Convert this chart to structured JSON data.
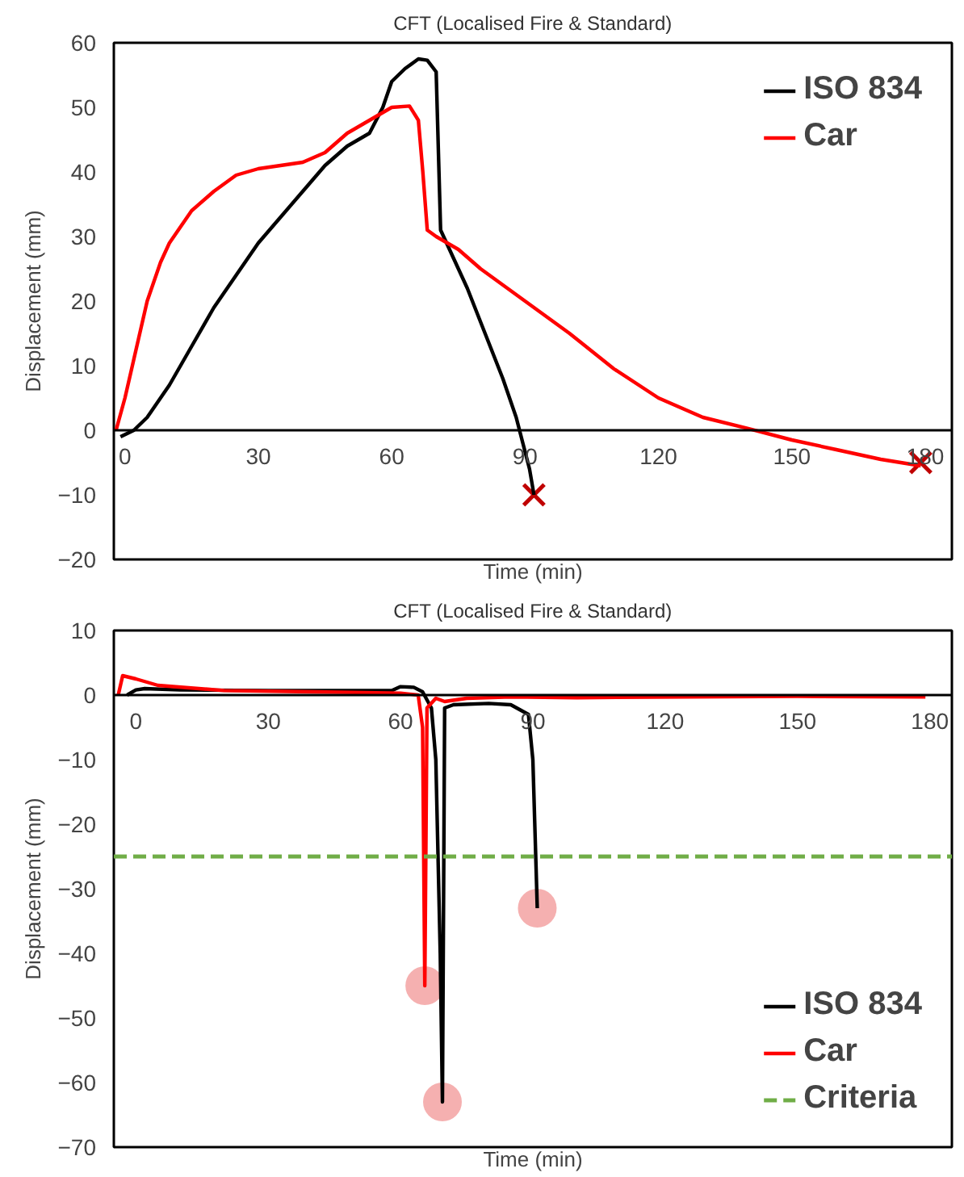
{
  "chart_data": [
    {
      "type": "line",
      "title": "CFT (Localised Fire & Standard)",
      "xlabel": "Time (min)",
      "ylabel": "Displacement (mm)",
      "xlim": [
        -2.5,
        186
      ],
      "ylim": [
        -20,
        60
      ],
      "xticks": [
        0,
        30,
        60,
        90,
        120,
        150,
        180
      ],
      "yticks": [
        -20,
        -10,
        0,
        10,
        20,
        30,
        40,
        50,
        60
      ],
      "grid": false,
      "legend": "top right",
      "series": [
        {
          "name": "ISO 834",
          "color": "#000000",
          "x": [
            -1,
            2,
            5,
            10,
            15,
            20,
            25,
            30,
            35,
            40,
            45,
            50,
            55,
            58,
            60,
            63,
            66,
            68,
            70,
            71,
            73,
            77,
            81,
            85,
            88,
            89.5,
            91,
            92
          ],
          "values": [
            -1,
            0,
            2,
            7,
            13,
            19,
            24,
            29,
            33,
            37,
            41,
            44,
            46,
            50,
            54,
            56,
            57.5,
            57.3,
            55.5,
            31,
            28,
            22,
            15,
            8,
            2,
            -2,
            -6,
            -10
          ]
        },
        {
          "name": "Car",
          "color": "#ff0000",
          "x": [
            -2,
            0,
            2,
            5,
            8,
            10,
            15,
            20,
            25,
            30,
            35,
            40,
            45,
            50,
            55,
            60,
            64,
            66,
            67,
            68,
            70,
            75,
            80,
            86,
            90,
            100,
            110,
            120,
            130,
            140,
            150,
            160,
            170,
            179
          ],
          "values": [
            0,
            5,
            11,
            20,
            26,
            29,
            34,
            37,
            39.5,
            40.5,
            41,
            41.5,
            43,
            46,
            48,
            50,
            50.2,
            48,
            40,
            31,
            30,
            28,
            25,
            22,
            20,
            15,
            9.5,
            5,
            2,
            0.3,
            -1.5,
            -3,
            -4.5,
            -5.5
          ]
        },
        {
          "type": "scatter",
          "marker": "cross",
          "color": "#c00000",
          "x": [
            92,
            179
          ],
          "values": [
            -10,
            -5
          ]
        }
      ]
    },
    {
      "type": "line",
      "title": "CFT (Localised Fire & Standard)",
      "xlabel": "Time (min)",
      "ylabel": "Displacement (mm)",
      "xlim": [
        -5,
        185
      ],
      "ylim": [
        -70,
        10
      ],
      "xticks": [
        0,
        30,
        60,
        90,
        120,
        150,
        180
      ],
      "yticks": [
        -70,
        -60,
        -50,
        -40,
        -30,
        -20,
        -10,
        0,
        10
      ],
      "grid": false,
      "legend": "bottom right",
      "series": [
        {
          "name": "ISO 834",
          "color": "#000000",
          "x": [
            -2,
            0,
            2,
            10,
            30,
            58,
            60,
            63,
            65,
            67,
            68,
            69,
            69.5,
            70,
            72,
            80,
            85,
            89,
            90,
            91
          ],
          "values": [
            0,
            0.8,
            1,
            0.8,
            0.7,
            0.7,
            1.3,
            1.2,
            0.5,
            -2,
            -10,
            -40,
            -63,
            -2,
            -1.5,
            -1.3,
            -1.5,
            -3,
            -10,
            -33
          ]
        },
        {
          "name": "Car",
          "color": "#ff0000",
          "x": [
            -4,
            -3,
            0,
            5,
            20,
            40,
            60,
            64,
            65,
            65.5,
            66,
            68,
            70,
            75,
            85,
            100,
            150,
            179
          ],
          "values": [
            0,
            3,
            2.5,
            1.5,
            0.7,
            0.5,
            0.3,
            0,
            -5,
            -45,
            -2,
            -0.5,
            -1,
            -0.5,
            -0.3,
            -0.4,
            -0.2,
            -0.3
          ]
        },
        {
          "type": "scatter",
          "marker": "circle",
          "color": "#f4a7a7",
          "x": [
            65.5,
            69.5,
            91
          ],
          "values": [
            -45,
            -63,
            -33
          ]
        }
      ],
      "ref_lines": [
        {
          "axis": "y",
          "value": -25,
          "label": "Criteria",
          "color": "#70ad47",
          "line_style": "dashed"
        }
      ]
    }
  ]
}
